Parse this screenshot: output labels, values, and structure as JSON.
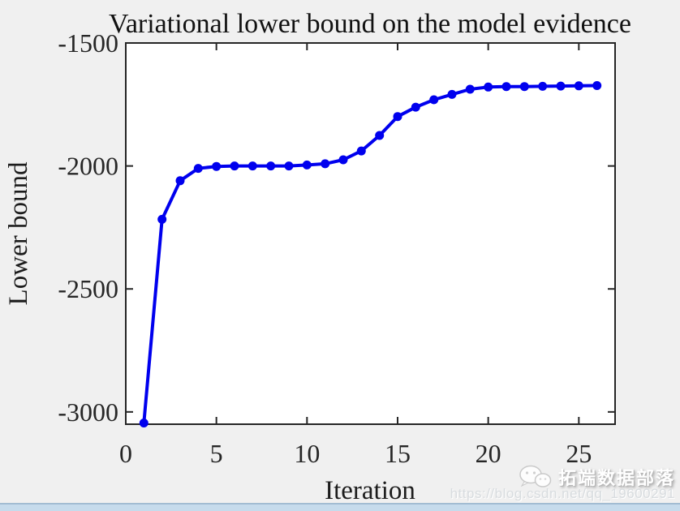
{
  "chart_data": {
    "type": "line",
    "title": "Variational lower bound on the model evidence",
    "xlabel": "Iteration",
    "ylabel": "Lower bound",
    "x": [
      1,
      2,
      3,
      4,
      5,
      6,
      7,
      8,
      9,
      10,
      11,
      12,
      13,
      14,
      15,
      16,
      17,
      18,
      19,
      20,
      21,
      22,
      23,
      24,
      25,
      26
    ],
    "values": [
      -3045,
      -2217,
      -2060,
      -2010,
      -2002,
      -2000,
      -2000,
      -2000,
      -2000,
      -1996,
      -1991,
      -1975,
      -1939,
      -1876,
      -1799,
      -1761,
      -1731,
      -1709,
      -1688,
      -1679,
      -1677,
      -1677,
      -1676,
      -1675,
      -1674,
      -1673
    ],
    "series_name": "lower-bound",
    "line_color": "#0000EE",
    "marker": "circle",
    "xlim": [
      0,
      27
    ],
    "ylim": [
      -3050,
      -1500
    ],
    "xticks": [
      {
        "v": 0,
        "label": "0"
      },
      {
        "v": 5,
        "label": "5"
      },
      {
        "v": 10,
        "label": "10"
      },
      {
        "v": 15,
        "label": "15"
      },
      {
        "v": 20,
        "label": "20"
      },
      {
        "v": 25,
        "label": "25"
      }
    ],
    "yticks": [
      {
        "v": -3000,
        "label": "-3000"
      },
      {
        "v": -2500,
        "label": "-2500"
      },
      {
        "v": -2000,
        "label": "-2000"
      },
      {
        "v": -1500,
        "label": "-1500"
      }
    ],
    "grid": false,
    "legend": null,
    "plot_bg": "#ffffff",
    "figure_bg": "#f0f0f0",
    "axis_color": "#262626"
  },
  "watermark": {
    "brand": "拓端数据部落",
    "url": "https://blog.csdn.net/qq_19600291",
    "icon": "wechat-icon"
  }
}
